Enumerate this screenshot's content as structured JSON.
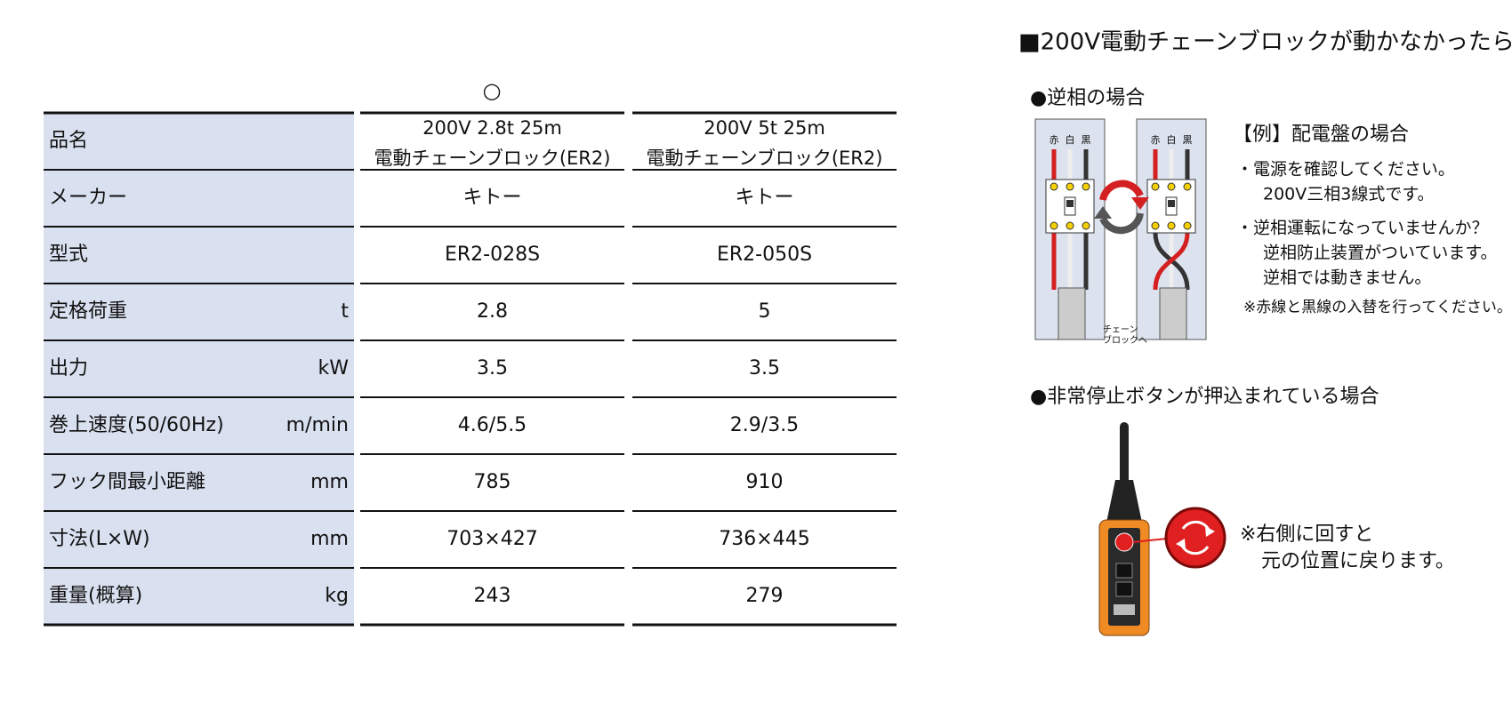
{
  "table": {
    "marker": "○",
    "header": {
      "label": "品名",
      "columns": [
        [
          "200V 2.8t 25m",
          "電動チェーンブロック(ER2)"
        ],
        [
          "200V 5t 25m",
          "電動チェーンブロック(ER2)"
        ]
      ]
    },
    "rows": [
      {
        "label": "メーカー",
        "values": [
          "キトー",
          "キトー"
        ]
      },
      {
        "label": "型式",
        "values": [
          "ER2-028S",
          "ER2-050S"
        ]
      },
      {
        "label": "定格荷重",
        "unit": "t",
        "values": [
          2.8,
          5
        ]
      },
      {
        "label": "出力",
        "unit": "kW",
        "values": [
          3.5,
          3.5
        ]
      },
      {
        "label": "巻上速度(50/60Hz)",
        "unit": "m/min",
        "values": [
          "4.6/5.5",
          "2.9/3.5"
        ]
      },
      {
        "label": "フック間最小距離",
        "unit": "mm",
        "values": [
          785,
          910
        ]
      },
      {
        "label": "寸法(L×W)",
        "unit": "mm",
        "values": [
          "703×427",
          "736×445"
        ]
      },
      {
        "label": "重量(概算)",
        "unit": "kg",
        "values": [
          243,
          279
        ]
      }
    ]
  },
  "troubleshoot": {
    "title": "■200V電動チェーンブロックが動かなかったら",
    "reverse_phase": {
      "heading": "●逆相の場合",
      "wire_labels": [
        "赤",
        "白",
        "黒"
      ],
      "cable_label": [
        "チェーン",
        "ブロックへ"
      ],
      "example": "【例】配電盤の場合",
      "notes": [
        [
          "・電源を確認してください。",
          "200V三相3線式です。"
        ],
        [
          "・逆相運転になっていませんか？",
          "逆相防止装置がついています。",
          "逆相では動きません。"
        ]
      ],
      "caution": "※赤線と黒線の入替を行ってください。"
    },
    "emergency_stop": {
      "heading": "●非常停止ボタンが押込まれている場合",
      "note": [
        "※右側に回すと",
        "元の位置に戻ります。"
      ]
    }
  }
}
